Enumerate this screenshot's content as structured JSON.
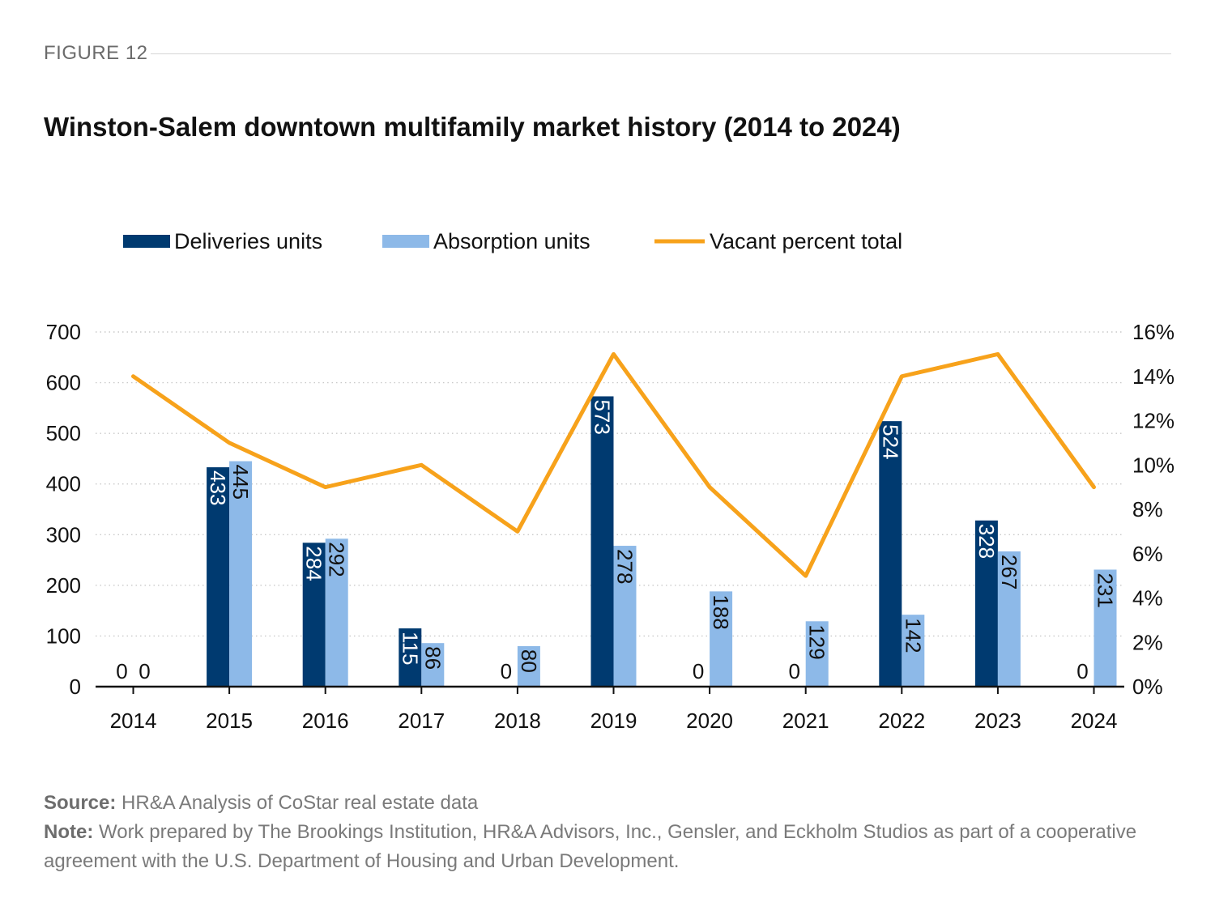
{
  "figure_label": "FIGURE 12",
  "chart_data": {
    "type": "bar",
    "title": "Winston-Salem downtown multifamily market history (2014 to 2024)",
    "categories": [
      "2014",
      "2015",
      "2016",
      "2017",
      "2018",
      "2019",
      "2020",
      "2021",
      "2022",
      "2023",
      "2024"
    ],
    "series": [
      {
        "name": "Deliveries units",
        "kind": "bar",
        "axis": "left",
        "color": "#003a70",
        "values": [
          0,
          433,
          284,
          115,
          0,
          573,
          0,
          0,
          524,
          328,
          0
        ]
      },
      {
        "name": "Absorption units",
        "kind": "bar",
        "axis": "left",
        "color": "#8db9e8",
        "values": [
          0,
          445,
          292,
          86,
          80,
          278,
          188,
          129,
          142,
          267,
          231
        ]
      },
      {
        "name": "Vacant percent total",
        "kind": "line",
        "axis": "right",
        "color": "#f7a21b",
        "values": [
          14,
          11,
          9,
          10,
          7,
          15,
          9,
          5,
          14,
          15,
          9
        ]
      }
    ],
    "y_left": {
      "min": 0,
      "max": 700,
      "ticks": [
        "0",
        "100",
        "200",
        "300",
        "400",
        "500",
        "600",
        "700"
      ]
    },
    "y_right": {
      "min": 0,
      "max": 16,
      "ticks": [
        "0%",
        "2%",
        "4%",
        "6%",
        "8%",
        "10%",
        "12%",
        "14%",
        "16%"
      ]
    },
    "legend_position": "top",
    "grid": "horizontal dotted"
  },
  "footer": {
    "source_label": "Source:",
    "source_text": " HR&A Analysis of CoStar real estate data",
    "note_label": "Note:",
    "note_text": " Work prepared by The Brookings Institution, HR&A Advisors, Inc., Gensler, and Eckholm Studios as part of a cooperative agreement with the U.S. Department of Housing and Urban Development."
  }
}
